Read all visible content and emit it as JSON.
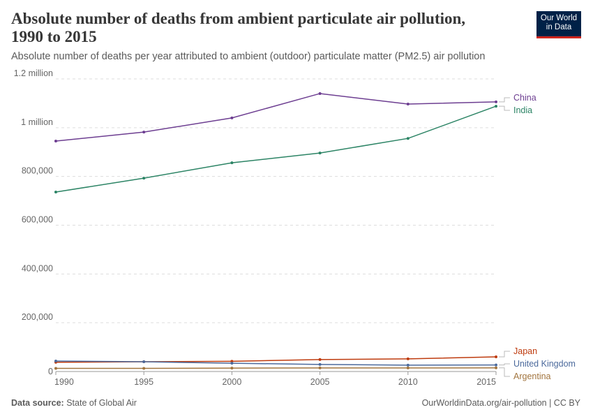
{
  "header": {
    "title": "Absolute number of deaths from ambient particulate air pollution, 1990 to 2015",
    "subtitle": "Absolute number of deaths per year attributed to ambient (outdoor) particulate matter (PM2.5) air pollution",
    "logo": "Our World in Data"
  },
  "footer": {
    "source_label": "Data source:",
    "source": "State of Global Air",
    "url": "OurWorldinData.org/air-pollution | CC BY"
  },
  "chart_data": {
    "type": "line",
    "title": "Absolute number of deaths from ambient particulate air pollution, 1990 to 2015",
    "x": [
      1990,
      1995,
      2000,
      2005,
      2010,
      2015
    ],
    "xticks": [
      "1990",
      "1995",
      "2000",
      "2005",
      "2010",
      "2015"
    ],
    "yticks": [
      {
        "v": 0,
        "l": "0"
      },
      {
        "v": 200000,
        "l": "200,000"
      },
      {
        "v": 400000,
        "l": "400,000"
      },
      {
        "v": 600000,
        "l": "600,000"
      },
      {
        "v": 800000,
        "l": "800,000"
      },
      {
        "v": 1000000,
        "l": "1 million"
      },
      {
        "v": 1200000,
        "l": "1.2 million"
      }
    ],
    "ylim": [
      0,
      1200000
    ],
    "grid": true,
    "legend": "right-end labels",
    "series": [
      {
        "name": "China",
        "color": "#6d3e91",
        "values": [
          945000,
          982000,
          1040000,
          1140000,
          1097000,
          1106000
        ]
      },
      {
        "name": "India",
        "color": "#2c8465",
        "values": [
          736000,
          793000,
          856000,
          896000,
          956000,
          1088000
        ]
      },
      {
        "name": "Japan",
        "color": "#be3b0e",
        "values": [
          38000,
          40000,
          42000,
          49000,
          52000,
          60000
        ]
      },
      {
        "name": "United Kingdom",
        "color": "#4c6a9c",
        "values": [
          43000,
          40000,
          34000,
          29000,
          26000,
          27000
        ]
      },
      {
        "name": "Argentina",
        "color": "#a2753f",
        "values": [
          13000,
          13000,
          14000,
          14500,
          14500,
          15000
        ]
      }
    ]
  }
}
